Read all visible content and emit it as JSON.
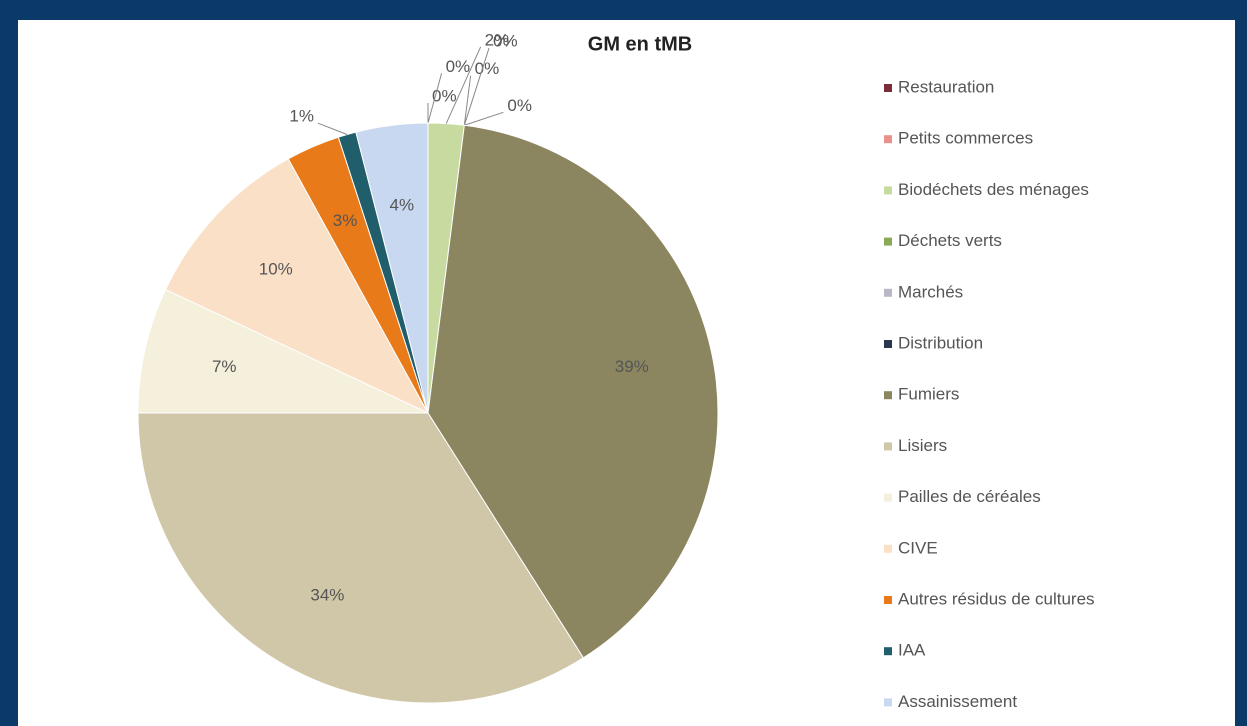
{
  "chart_data": {
    "type": "pie",
    "title": "GM en tMB",
    "categories": [
      "Restauration",
      "Petits commerces",
      "Biodéchets des ménages",
      "Déchets verts",
      "Marchés",
      "Distribution",
      "Fumiers",
      "Lisiers",
      "Pailles de céréales",
      "CIVE",
      "Autres résidus de cultures",
      "IAA",
      "Assainissement"
    ],
    "values": [
      0,
      0,
      2,
      0,
      0,
      0,
      39,
      34,
      7,
      10,
      3,
      1,
      4
    ],
    "value_labels": [
      "0%",
      "0%",
      "2%",
      "0%",
      "0%",
      "0%",
      "39%",
      "34%",
      "7%",
      "10%",
      "3%",
      "1%",
      "4%"
    ],
    "colors": [
      "#7b2d3a",
      "#e8908a",
      "#c7dba0",
      "#8aaa5a",
      "#b8b8c8",
      "#2a3550",
      "#8b8560",
      "#d0c7a8",
      "#f4f0dc",
      "#fbe0c8",
      "#e87a1a",
      "#1f5e6a",
      "#c8d8f0"
    ],
    "legend": "right"
  }
}
